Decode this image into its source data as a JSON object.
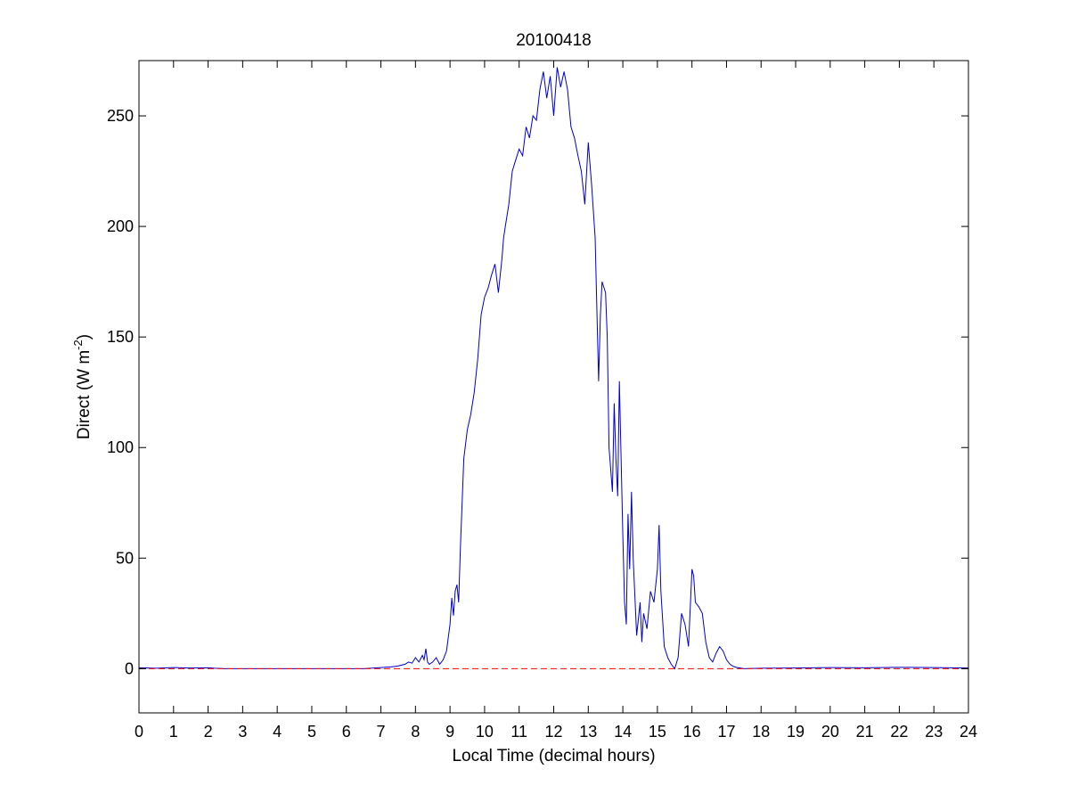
{
  "chart_data": {
    "type": "line",
    "title": "20100418",
    "xlabel": "Local Time (decimal hours)",
    "ylabel": {
      "main": "Direct (W m",
      "superscript": "-2",
      "close": ")"
    },
    "xlim": [
      0,
      24
    ],
    "ylim": [
      -20,
      275
    ],
    "xticks": [
      0,
      1,
      2,
      3,
      4,
      5,
      6,
      7,
      8,
      9,
      10,
      11,
      12,
      13,
      14,
      15,
      16,
      17,
      18,
      19,
      20,
      21,
      22,
      23,
      24
    ],
    "yticks": [
      0,
      50,
      100,
      150,
      200,
      250
    ],
    "grid": false,
    "series": [
      {
        "color": "#0000cc",
        "style": "solid",
        "x": [
          0,
          0.5,
          1,
          1.5,
          2,
          2.2,
          2.5,
          3,
          4,
          5,
          6,
          6.5,
          7,
          7.3,
          7.5,
          7.7,
          7.8,
          7.9,
          8.0,
          8.1,
          8.2,
          8.25,
          8.3,
          8.35,
          8.4,
          8.5,
          8.6,
          8.7,
          8.8,
          8.9,
          9.0,
          9.05,
          9.1,
          9.15,
          9.2,
          9.25,
          9.3,
          9.4,
          9.5,
          9.6,
          9.7,
          9.8,
          9.9,
          10.0,
          10.1,
          10.2,
          10.3,
          10.4,
          10.5,
          10.55,
          10.6,
          10.7,
          10.8,
          10.9,
          11.0,
          11.1,
          11.2,
          11.3,
          11.4,
          11.5,
          11.6,
          11.7,
          11.8,
          11.9,
          12.0,
          12.1,
          12.2,
          12.3,
          12.4,
          12.5,
          12.6,
          12.7,
          12.8,
          12.9,
          13.0,
          13.1,
          13.2,
          13.3,
          13.35,
          13.4,
          13.5,
          13.55,
          13.6,
          13.7,
          13.75,
          13.8,
          13.85,
          13.9,
          14.0,
          14.05,
          14.1,
          14.15,
          14.2,
          14.25,
          14.3,
          14.4,
          14.5,
          14.55,
          14.6,
          14.7,
          14.8,
          14.9,
          15.0,
          15.05,
          15.1,
          15.2,
          15.3,
          15.4,
          15.5,
          15.6,
          15.7,
          15.8,
          15.9,
          16.0,
          16.05,
          16.1,
          16.2,
          16.3,
          16.4,
          16.5,
          16.6,
          16.7,
          16.8,
          16.9,
          17.0,
          17.1,
          17.2,
          17.3,
          17.4,
          17.5,
          18,
          19,
          20,
          21,
          22,
          23,
          24
        ],
        "y": [
          0.4,
          0.2,
          0.5,
          0.3,
          0.4,
          0.2,
          0,
          0,
          0,
          0,
          0,
          0,
          0.5,
          0.8,
          1.2,
          2,
          3,
          2.5,
          5,
          3,
          6,
          4,
          9,
          3,
          2,
          3,
          5,
          2,
          4,
          8,
          20,
          32,
          24,
          35,
          38,
          30,
          55,
          95,
          108,
          115,
          125,
          140,
          160,
          168,
          172,
          178,
          183,
          170,
          185,
          195,
          200,
          210,
          225,
          230,
          235,
          232,
          245,
          240,
          250,
          248,
          262,
          270,
          258,
          268,
          250,
          272,
          263,
          270,
          262,
          245,
          240,
          232,
          225,
          210,
          238,
          218,
          195,
          130,
          160,
          175,
          170,
          150,
          100,
          80,
          120,
          95,
          78,
          130,
          60,
          30,
          20,
          70,
          45,
          80,
          50,
          15,
          30,
          12,
          25,
          18,
          35,
          30,
          45,
          65,
          35,
          10,
          5,
          2,
          0,
          5,
          25,
          20,
          10,
          45,
          42,
          30,
          28,
          25,
          12,
          5,
          3,
          7,
          10,
          8,
          4,
          2,
          1,
          0.5,
          0.3,
          0,
          0.2,
          0.3,
          0.5,
          0.4,
          0.6,
          0.5,
          0.3
        ]
      },
      {
        "color": "#ff0000",
        "style": "dashed",
        "x": [
          0,
          24
        ],
        "y": [
          0,
          0
        ]
      }
    ]
  }
}
